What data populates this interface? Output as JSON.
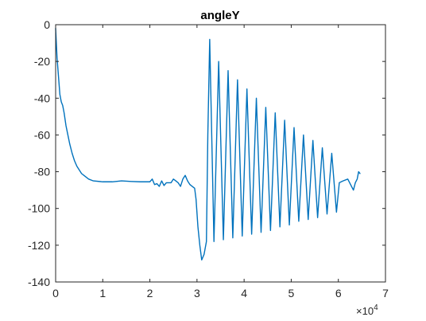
{
  "chart_data": {
    "type": "line",
    "title": "angleY",
    "xlabel": "",
    "ylabel": "",
    "xlim": [
      0,
      70000
    ],
    "ylim": [
      -140,
      0
    ],
    "x_tick_values": [
      0,
      10000,
      20000,
      30000,
      40000,
      50000,
      60000,
      70000
    ],
    "x_tick_labels": [
      "0",
      "1",
      "2",
      "3",
      "4",
      "5",
      "6",
      "7"
    ],
    "x_exponent_base": "×10",
    "x_exponent_power": "4",
    "y_tick_values": [
      0,
      -20,
      -40,
      -60,
      -80,
      -100,
      -120,
      -140
    ],
    "y_tick_labels": [
      "0",
      "-20",
      "-40",
      "-60",
      "-80",
      "-100",
      "-120",
      "-140"
    ],
    "grid": false,
    "box": true,
    "series": [
      {
        "color": "#0072BD",
        "x": [
          0,
          300,
          600,
          900,
          1200,
          1500,
          1800,
          2200,
          2600,
          3000,
          3500,
          4000,
          4500,
          5000,
          5500,
          6000,
          7000,
          8000,
          10000,
          12000,
          14000,
          16000,
          18000,
          20000,
          20500,
          21000,
          21500,
          22000,
          22500,
          23000,
          23500,
          24000,
          24500,
          25000,
          25500,
          26000,
          26500,
          27000,
          27500,
          28000,
          28500,
          29000,
          29500,
          29800,
          30200,
          30600,
          31000,
          31500,
          32000,
          32300,
          32700,
          33600,
          34600,
          35600,
          36600,
          37600,
          38600,
          39600,
          40600,
          41600,
          42600,
          43600,
          44600,
          45600,
          46600,
          47600,
          48600,
          49600,
          50600,
          51600,
          52600,
          53600,
          54600,
          55600,
          56600,
          57600,
          58600,
          59600,
          60200,
          61000,
          62000,
          62800,
          63200,
          63600,
          64000,
          64300,
          64600
        ],
        "y": [
          -2,
          -18,
          -28,
          -38,
          -42,
          -44,
          -48,
          -55,
          -60,
          -65,
          -70,
          -74,
          -77,
          -79,
          -81,
          -82,
          -84,
          -85,
          -85.5,
          -85.5,
          -85,
          -85.3,
          -85.5,
          -85.5,
          -84,
          -87,
          -86.5,
          -88,
          -85,
          -87.5,
          -86,
          -86,
          -86,
          -84,
          -85,
          -86,
          -88,
          -84,
          -82,
          -85,
          -87,
          -88,
          -89,
          -95,
          -110,
          -120,
          -128,
          -125,
          -118,
          -60,
          -8,
          -118,
          -20,
          -117,
          -25,
          -116,
          -30,
          -115,
          -35,
          -114,
          -40,
          -113,
          -45,
          -112,
          -48,
          -110,
          -52,
          -109,
          -56,
          -107,
          -60,
          -106,
          -63,
          -105,
          -67,
          -103,
          -70,
          -102,
          -86,
          -85,
          -84,
          -88,
          -90,
          -86,
          -84,
          -80,
          -81
        ]
      }
    ]
  }
}
